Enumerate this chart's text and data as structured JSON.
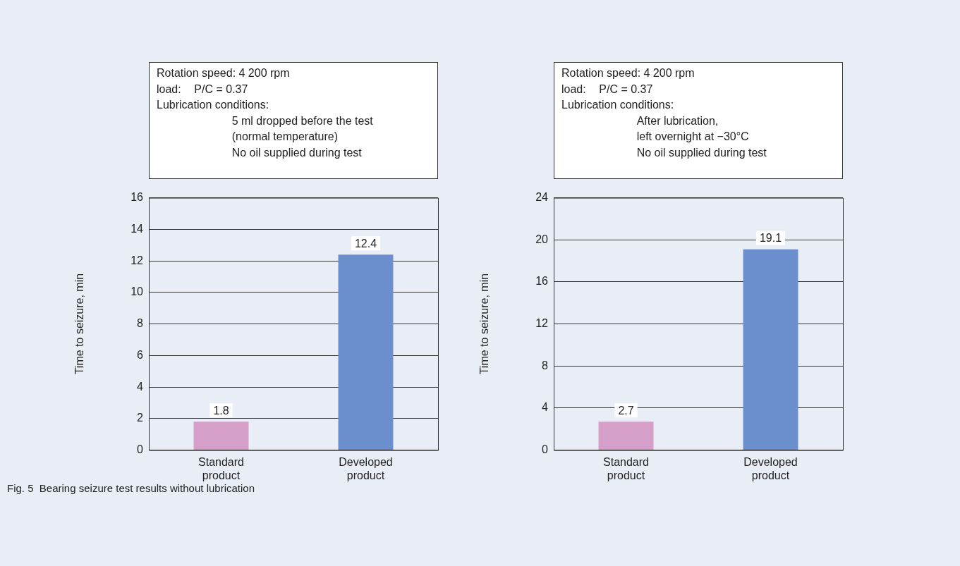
{
  "chart_data": [
    {
      "type": "bar",
      "ylabel": "Time to seizure, min",
      "categories": [
        "Standard\nproduct",
        "Developed\nproduct"
      ],
      "values": [
        1.8,
        12.4
      ],
      "colors": [
        "#d59fc9",
        "#6a8fcc"
      ],
      "ylim": [
        0,
        16
      ],
      "yticks": [
        0,
        2,
        4,
        6,
        8,
        10,
        12,
        14,
        16
      ],
      "grid": "y",
      "data_labels": true,
      "annotations": [
        "Rotation speed: 4 200 rpm\nload:\tP/C = 0.37\nLubrication conditions:\n\t\t5 ml dropped before the test\n\t\t(normal temperature)\n\t\tNo oil supplied during test"
      ]
    },
    {
      "type": "bar",
      "ylabel": "Time to seizure, min",
      "categories": [
        "Standard\nproduct",
        "Developed\nproduct"
      ],
      "values": [
        2.7,
        19.1
      ],
      "colors": [
        "#d59fc9",
        "#6a8fcc"
      ],
      "ylim": [
        0,
        24
      ],
      "yticks": [
        0,
        4,
        8,
        12,
        16,
        20,
        24
      ],
      "grid": "y",
      "data_labels": true,
      "annotations": [
        "Rotation speed: 4 200 rpm\nload:\tP/C = 0.37\nLubrication conditions:\n\t\tAfter lubrication,\n\t\tleft overnight at −30°C\n\t\tNo oil supplied during test",
        "Fig. 5  Bearing seizure test results without lubrication"
      ]
    }
  ]
}
